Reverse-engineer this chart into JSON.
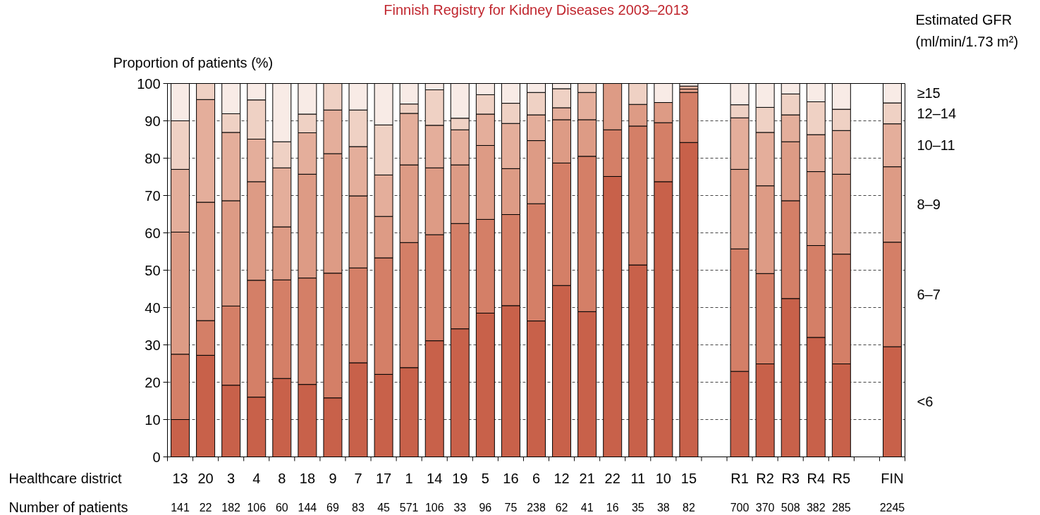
{
  "chart_data": {
    "type": "bar",
    "stacked": true,
    "title": "Finnish Registry for Kidney Diseases 2003–2013",
    "ylabel": "Proportion of patients (%)",
    "xlabel": "Healthcare district",
    "legend_title": "Estimated GFR (ml/min/1.73 m²)",
    "grid": "y",
    "ylim": [
      0,
      100
    ],
    "yticks": [
      0,
      10,
      20,
      30,
      40,
      50,
      60,
      70,
      80,
      90,
      100
    ],
    "categories": [
      "13",
      "20",
      "3",
      "4",
      "8",
      "18",
      "9",
      "7",
      "17",
      "1",
      "14",
      "19",
      "5",
      "16",
      "6",
      "12",
      "21",
      "22",
      "11",
      "10",
      "15",
      null,
      "R1",
      "R2",
      "R3",
      "R4",
      "R5",
      null,
      "FIN"
    ],
    "series": [
      {
        "name": "<6",
        "color": "#c8614a",
        "values": [
          10,
          27.2,
          19.2,
          16,
          21,
          19.4,
          15.8,
          25.2,
          22.1,
          23.9,
          31.1,
          34.3,
          38.5,
          40.5,
          36.4,
          45.9,
          38.9,
          75.1,
          51.4,
          73.7,
          84.2,
          null,
          22.9,
          24.9,
          42.4,
          32,
          24.9,
          null,
          29.5
        ]
      },
      {
        "name": "6–7",
        "color": "#d47f67",
        "values": [
          17.5,
          9.3,
          21.2,
          31.3,
          26.4,
          28.5,
          33.4,
          25.4,
          31.2,
          33.5,
          28.4,
          28.2,
          25.1,
          24.4,
          31.4,
          32.8,
          41.6,
          12.5,
          37.2,
          15.8,
          13.4,
          null,
          32.8,
          24.2,
          26.2,
          24.6,
          29.4,
          null,
          28
        ]
      },
      {
        "name": "8–9",
        "color": "#dd9b85",
        "values": [
          32.7,
          31.7,
          28.2,
          26.4,
          14.2,
          27.8,
          32,
          19.3,
          11.1,
          20.8,
          17.9,
          15.7,
          19.8,
          12.3,
          16.9,
          11.6,
          9.8,
          12.4,
          5.8,
          5.4,
          0.9,
          null,
          21.3,
          23.5,
          15.8,
          19.8,
          21.4,
          null,
          20.2
        ]
      },
      {
        "name": "10–11",
        "color": "#e4ae9b",
        "values": [
          16.8,
          27.5,
          18.3,
          11.4,
          15.8,
          11.1,
          11.7,
          13.2,
          11.1,
          13.8,
          11.4,
          9.4,
          8.4,
          12.1,
          6.9,
          3.2,
          7.3,
          0,
          0,
          0,
          0.8,
          null,
          13.8,
          14.3,
          7.2,
          9.9,
          11.7,
          null,
          11.5
        ]
      },
      {
        "name": "12–14",
        "color": "#efd1c4",
        "values": [
          13,
          4.3,
          5,
          10.5,
          7,
          5,
          7.1,
          9.8,
          13.4,
          2.5,
          9.5,
          3.1,
          5.2,
          5.4,
          6,
          5.1,
          2.4,
          0,
          5.6,
          0,
          0,
          null,
          3.5,
          6.7,
          5.6,
          8.8,
          5.7,
          null,
          5.6
        ]
      },
      {
        "name": "≥15",
        "color": "#f8ebe6",
        "values": [
          10,
          0,
          8.1,
          4.4,
          15.6,
          8.2,
          0,
          7.1,
          11.1,
          5.5,
          1.7,
          9.3,
          3,
          5.3,
          2.4,
          1.4,
          0,
          0,
          0,
          5.1,
          0.7,
          null,
          5.7,
          6.4,
          2.8,
          4.9,
          6.9,
          null,
          5.2
        ]
      }
    ],
    "annotations": [
      "Number of patients",
      "141",
      "22",
      "182",
      "106",
      "60",
      "144",
      "69",
      "83",
      "45",
      "571",
      "106",
      "33",
      "96",
      "75",
      "238",
      "62",
      "41",
      "16",
      "35",
      "38",
      "82",
      "700",
      "370",
      "508",
      "382",
      "285",
      "2245"
    ]
  }
}
